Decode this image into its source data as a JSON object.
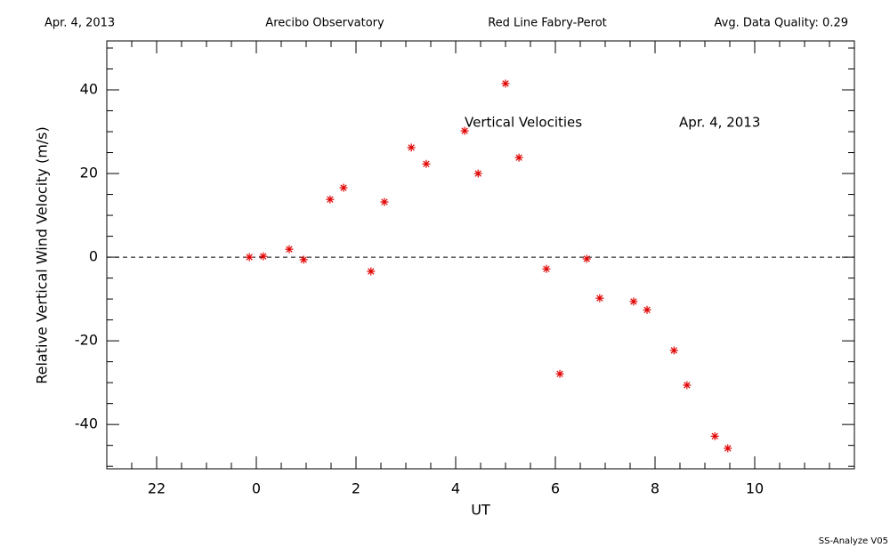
{
  "chart_data": {
    "type": "scatter",
    "header": [
      "Apr. 4, 2013",
      "Arecibo Observatory",
      "Red Line Fabry-Perot",
      "Avg. Data Quality: 0.29"
    ],
    "annotations": [
      "Vertical Velocities",
      "Apr. 4, 2013"
    ],
    "footer": "SS-Analyze V05",
    "x_label": "UT",
    "y_label": "Relative Vertical Wind Velocity (m/s)",
    "xlim": [
      -3,
      12
    ],
    "ylim": [
      -50.6,
      51.7
    ],
    "xticks": [
      {
        "value": -2,
        "label": "22"
      },
      0,
      2,
      4,
      6,
      8,
      10
    ],
    "yticks": [
      -40,
      -20,
      0,
      20,
      40
    ],
    "xminorticks": [
      -2.5,
      -1.5,
      -1,
      -0.5,
      0.5,
      1,
      1.5,
      2.5,
      3,
      3.5,
      4.5,
      5,
      5.5,
      6.5,
      7,
      7.5,
      8.5,
      9,
      9.5,
      10.5,
      11,
      11.5
    ],
    "yminorticks": [
      -50,
      -45,
      -35,
      -30,
      -25,
      -15,
      -10,
      -5,
      5,
      10,
      15,
      25,
      30,
      35,
      45,
      50
    ],
    "hline": 0,
    "color": "#e00000",
    "x": [
      -0.14,
      0.14,
      0.66,
      0.95,
      1.48,
      1.75,
      2.3,
      2.57,
      3.11,
      3.41,
      4.18,
      4.45,
      5.0,
      5.27,
      5.82,
      6.09,
      6.63,
      6.89,
      7.57,
      7.84,
      8.38,
      8.64,
      9.2,
      9.46
    ],
    "values": [
      0,
      0.2,
      1.9,
      -0.6,
      13.8,
      16.6,
      -3.4,
      13.2,
      26.2,
      22.3,
      30.2,
      20.0,
      41.5,
      23.8,
      -2.8,
      -27.9,
      -0.4,
      -9.8,
      -10.6,
      -12.6,
      -22.3,
      -30.6,
      -42.8,
      -45.7
    ]
  }
}
